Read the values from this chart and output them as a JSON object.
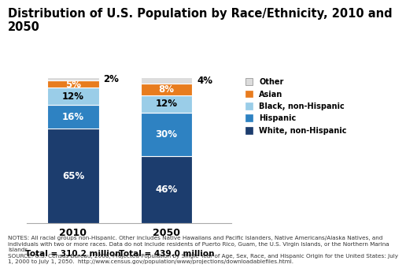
{
  "title": "Distribution of U.S. Population by Race/Ethnicity, 2010 and\n2050",
  "years": [
    "2010",
    "2050"
  ],
  "subtitles": [
    "Total = 310.2 million",
    "Total = 439.0 million"
  ],
  "categories": [
    "White, non-Hispanic",
    "Hispanic",
    "Black, non-Hispanic",
    "Asian",
    "Other"
  ],
  "colors": [
    "#1c3d6e",
    "#2e82c2",
    "#9acde8",
    "#e87c1e",
    "#dcdcdc"
  ],
  "values_2010": [
    65,
    16,
    12,
    5,
    2
  ],
  "values_2050": [
    46,
    30,
    12,
    8,
    4
  ],
  "legend_labels": [
    "Other",
    "Asian",
    "Black, non-Hispanic",
    "Hispanic",
    "White, non-Hispanic"
  ],
  "legend_colors": [
    "#dcdcdc",
    "#e87c1e",
    "#9acde8",
    "#2e82c2",
    "#1c3d6e"
  ],
  "notes_line1": "NOTES: All racial groups non-Hispanic. Other includes Native Hawaiians and Pacific Islanders, Native Americans/Alaska Natives, and",
  "notes_line2": "individuals with two or more races. Data do not include residents of Puerto Rico, Guam, the U.S. Virgin Islands, or the Northern Marina",
  "notes_line3": "Islands.",
  "notes_line4": "SOURCE: U.S. Census Bureau, 2008, Projected Population by Single Year of Age, Sex, Race, and Hispanic Origin for the United States: July",
  "notes_line5": "1, 2000 to July 1, 2050.  http://www.census.gov/population/www/projections/downloadablefiles.html.",
  "background_color": "#ffffff",
  "title_fontsize": 10.5,
  "bar_label_fontsize": 8.5,
  "axis_label_fontsize": 9,
  "subtitle_fontsize": 7.5,
  "legend_fontsize": 7,
  "notes_fontsize": 5.2
}
